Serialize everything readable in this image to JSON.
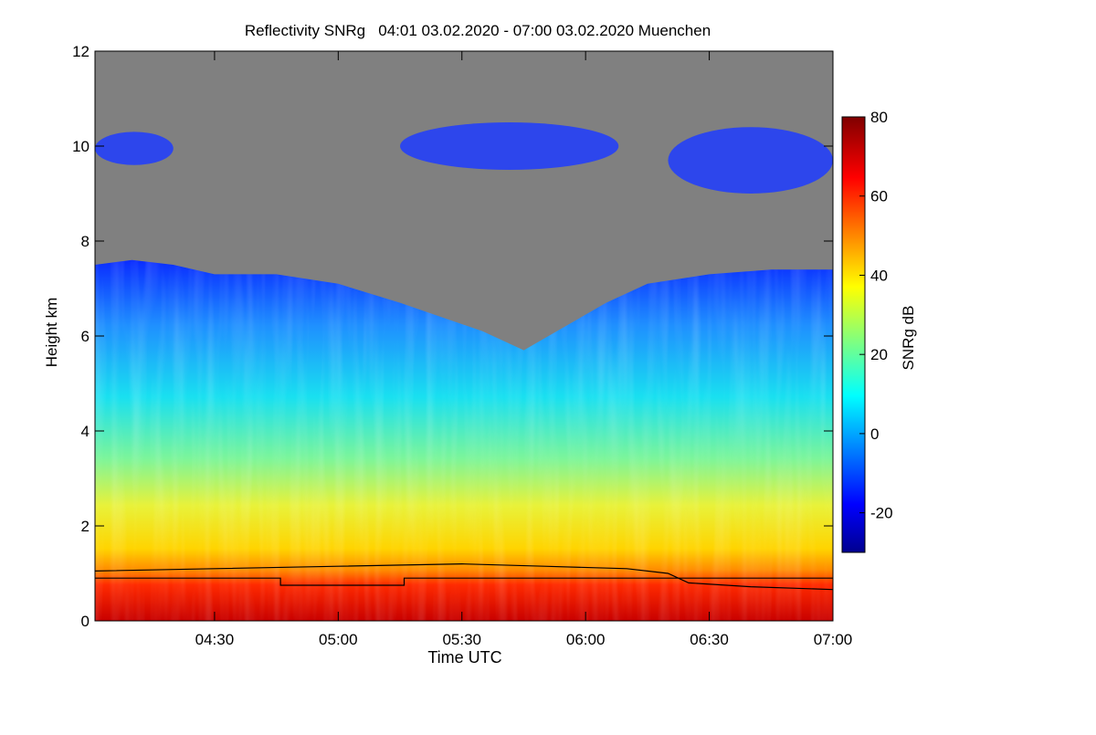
{
  "chart_data": {
    "type": "heatmap",
    "title": "Reflectivity SNRg   04:01 03.02.2020 - 07:00 03.02.2020 Muenchen",
    "xlabel": "Time UTC",
    "ylabel": "Height km",
    "x_range": [
      "04:01",
      "07:00"
    ],
    "xticks": [
      "04:30",
      "05:00",
      "05:30",
      "06:00",
      "06:30",
      "07:00"
    ],
    "ylim": [
      0,
      12
    ],
    "yticks": [
      0,
      2,
      4,
      6,
      8,
      10,
      12
    ],
    "background_color": "#808080",
    "colorbar": {
      "label": "SNRg dB",
      "range": [
        -30,
        80
      ],
      "ticks": [
        -20,
        0,
        20,
        40,
        60,
        80
      ],
      "colormap": "jet"
    },
    "cloud_top_km": [
      {
        "t": "04:01",
        "h": 7.5
      },
      {
        "t": "04:10",
        "h": 7.6
      },
      {
        "t": "04:20",
        "h": 7.5
      },
      {
        "t": "04:30",
        "h": 7.3
      },
      {
        "t": "04:45",
        "h": 7.3
      },
      {
        "t": "05:00",
        "h": 7.1
      },
      {
        "t": "05:15",
        "h": 6.7
      },
      {
        "t": "05:25",
        "h": 6.4
      },
      {
        "t": "05:35",
        "h": 6.1
      },
      {
        "t": "05:45",
        "h": 5.7
      },
      {
        "t": "05:55",
        "h": 6.2
      },
      {
        "t": "06:05",
        "h": 6.7
      },
      {
        "t": "06:15",
        "h": 7.1
      },
      {
        "t": "06:30",
        "h": 7.3
      },
      {
        "t": "06:45",
        "h": 7.4
      },
      {
        "t": "07:00",
        "h": 7.4
      }
    ],
    "cirrus_layer_km": [
      {
        "t_start": "04:01",
        "t_end": "04:20",
        "h_low": 9.6,
        "h_high": 10.3
      },
      {
        "t_start": "05:15",
        "t_end": "06:08",
        "h_low": 9.5,
        "h_high": 10.5
      },
      {
        "t_start": "06:20",
        "t_end": "07:00",
        "h_low": 9.0,
        "h_high": 10.4
      }
    ],
    "line_series": [
      {
        "points": [
          {
            "t": "04:01",
            "h": 1.05
          },
          {
            "t": "04:30",
            "h": 1.1
          },
          {
            "t": "05:00",
            "h": 1.15
          },
          {
            "t": "05:30",
            "h": 1.2
          },
          {
            "t": "05:50",
            "h": 1.15
          },
          {
            "t": "06:10",
            "h": 1.1
          },
          {
            "t": "06:20",
            "h": 1.0
          },
          {
            "t": "06:25",
            "h": 0.8
          },
          {
            "t": "06:40",
            "h": 0.72
          },
          {
            "t": "07:00",
            "h": 0.66
          }
        ]
      },
      {
        "points": [
          {
            "t": "04:01",
            "h": 0.9
          },
          {
            "t": "04:46",
            "h": 0.9
          },
          {
            "t": "04:46",
            "h": 0.75
          },
          {
            "t": "05:16",
            "h": 0.75
          },
          {
            "t": "05:16",
            "h": 0.9
          },
          {
            "t": "07:00",
            "h": 0.9
          }
        ]
      }
    ]
  }
}
